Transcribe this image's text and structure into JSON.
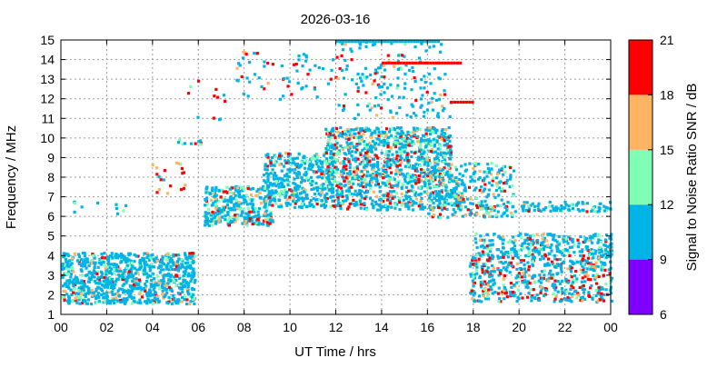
{
  "chart_data": {
    "type": "scatter",
    "title": "2026-03-16",
    "xlabel": "UT Time / hrs",
    "ylabel": "Frequency / MHz",
    "xlim": [
      0,
      24
    ],
    "ylim": [
      1,
      15
    ],
    "x_ticks": [
      "00",
      "02",
      "04",
      "06",
      "08",
      "10",
      "12",
      "14",
      "16",
      "18",
      "20",
      "22",
      "00"
    ],
    "y_ticks": [
      "1",
      "2",
      "3",
      "4",
      "5",
      "6",
      "7",
      "8",
      "9",
      "10",
      "11",
      "12",
      "13",
      "14",
      "15"
    ],
    "grid": true,
    "colorbar": {
      "label": "Signal to Noise Ratio SNR / dB",
      "ticks": [
        "6",
        "9",
        "12",
        "15",
        "18",
        "21"
      ],
      "range": [
        6,
        21
      ],
      "bands": [
        {
          "from": 6,
          "to": 9,
          "color": "#8000ff"
        },
        {
          "from": 9,
          "to": 12,
          "color": "#00b4e6"
        },
        {
          "from": 12,
          "to": 15,
          "color": "#80ffb4"
        },
        {
          "from": 15,
          "to": 18,
          "color": "#ffb464"
        },
        {
          "from": 18,
          "to": 21,
          "color": "#ff0000"
        }
      ]
    },
    "clusters": [
      {
        "x": [
          0.0,
          5.8
        ],
        "y": [
          1.6,
          4.2
        ],
        "snr_mix": [
          0.78,
          0.12,
          0.06,
          0.04
        ],
        "count": 900
      },
      {
        "x": [
          0.5,
          3.0
        ],
        "y": [
          6.2,
          7.0
        ],
        "snr_mix": [
          0.85,
          0.1,
          0.0,
          0.05
        ],
        "count": 10
      },
      {
        "x": [
          3.9,
          5.6
        ],
        "y": [
          7.2,
          8.8
        ],
        "snr_mix": [
          0.2,
          0.1,
          0.2,
          0.5
        ],
        "count": 20
      },
      {
        "x": [
          4.6,
          6.2
        ],
        "y": [
          9.7,
          10.0
        ],
        "snr_mix": [
          0.7,
          0.15,
          0.0,
          0.15
        ],
        "count": 10
      },
      {
        "x": [
          6.2,
          9.2
        ],
        "y": [
          5.6,
          7.6
        ],
        "snr_mix": [
          0.7,
          0.15,
          0.08,
          0.07
        ],
        "count": 330
      },
      {
        "x": [
          8.8,
          12.0
        ],
        "y": [
          6.5,
          9.3
        ],
        "snr_mix": [
          0.7,
          0.15,
          0.07,
          0.08
        ],
        "count": 420
      },
      {
        "x": [
          11.5,
          17.0
        ],
        "y": [
          7.5,
          10.6
        ],
        "snr_mix": [
          0.55,
          0.2,
          0.1,
          0.15
        ],
        "count": 900
      },
      {
        "x": [
          12.0,
          17.5
        ],
        "y": [
          6.4,
          7.4
        ],
        "snr_mix": [
          0.65,
          0.15,
          0.1,
          0.1
        ],
        "count": 250
      },
      {
        "x": [
          16.0,
          19.8
        ],
        "y": [
          6.0,
          8.8
        ],
        "snr_mix": [
          0.65,
          0.15,
          0.1,
          0.1
        ],
        "count": 280
      },
      {
        "x": [
          18.0,
          24.0
        ],
        "y": [
          4.0,
          5.2
        ],
        "snr_mix": [
          0.75,
          0.15,
          0.05,
          0.05
        ],
        "count": 300
      },
      {
        "x": [
          17.8,
          24.0
        ],
        "y": [
          1.7,
          4.0
        ],
        "snr_mix": [
          0.6,
          0.1,
          0.1,
          0.2
        ],
        "count": 500
      },
      {
        "x": [
          20.0,
          24.0
        ],
        "y": [
          6.3,
          6.8
        ],
        "snr_mix": [
          0.8,
          0.1,
          0.05,
          0.05
        ],
        "count": 80
      },
      {
        "x": [
          7.5,
          12.5
        ],
        "y": [
          12.0,
          14.5
        ],
        "snr_mix": [
          0.75,
          0.0,
          0.05,
          0.2
        ],
        "count": 70
      },
      {
        "x": [
          12.0,
          17.0
        ],
        "y": [
          11.0,
          15.0
        ],
        "snr_mix": [
          0.75,
          0.05,
          0.05,
          0.15
        ],
        "count": 160
      },
      {
        "x": [
          5.5,
          7.5
        ],
        "y": [
          11.0,
          13.0
        ],
        "snr_mix": [
          0.6,
          0.1,
          0.1,
          0.2
        ],
        "count": 12
      }
    ],
    "tracks": [
      {
        "name": "e-track-high",
        "x": [
          12.0,
          16.5
        ],
        "y": 15.0,
        "color": "#00b4e6"
      },
      {
        "name": "e-track-14",
        "x": [
          14.0,
          17.5
        ],
        "y": 13.9,
        "color": "#ff0000"
      },
      {
        "name": "e-track-12",
        "x": [
          17.0,
          18.0
        ],
        "y": 11.9,
        "color": "#ff0000"
      }
    ]
  }
}
